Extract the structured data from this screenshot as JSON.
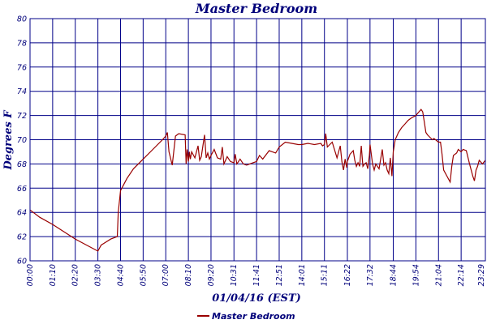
{
  "chart_data": {
    "type": "line",
    "title": "Master Bedroom",
    "xlabel": "01/04/16 (EST)",
    "ylabel": "Degrees F",
    "ylim": [
      60,
      80
    ],
    "yticks": [
      60,
      62,
      64,
      66,
      68,
      70,
      72,
      74,
      76,
      78,
      80
    ],
    "xlim": [
      "00:00",
      "23:29"
    ],
    "xticks": [
      "00:00",
      "01:10",
      "02:20",
      "03:30",
      "04:40",
      "05:50",
      "07:00",
      "08:10",
      "09:20",
      "10:31",
      "11:41",
      "12:51",
      "14:01",
      "15:11",
      "16:22",
      "17:32",
      "18:44",
      "19:54",
      "21:04",
      "22:14",
      "23:29"
    ],
    "grid": true,
    "legend": "bottom-center",
    "line_color": "#990000",
    "grid_color": "#000088",
    "series": [
      {
        "name": "Master Bedroom",
        "x": [
          "00:00",
          "00:30",
          "01:10",
          "01:45",
          "02:20",
          "02:55",
          "03:30",
          "03:40",
          "04:10",
          "04:30",
          "04:33",
          "04:40",
          "05:00",
          "05:20",
          "05:50",
          "06:20",
          "06:50",
          "07:00",
          "07:05",
          "07:10",
          "07:20",
          "07:30",
          "07:40",
          "08:00",
          "08:03",
          "08:06",
          "08:10",
          "08:13",
          "08:16",
          "08:20",
          "08:30",
          "08:40",
          "08:45",
          "08:50",
          "09:00",
          "09:05",
          "09:10",
          "09:15",
          "09:20",
          "09:30",
          "09:40",
          "09:50",
          "09:55",
          "10:00",
          "10:10",
          "10:20",
          "10:31",
          "10:35",
          "10:40",
          "10:50",
          "11:00",
          "11:10",
          "11:20",
          "11:30",
          "11:41",
          "11:50",
          "12:00",
          "12:20",
          "12:40",
          "12:51",
          "13:10",
          "13:30",
          "13:50",
          "14:01",
          "14:20",
          "14:40",
          "15:00",
          "15:05",
          "15:11",
          "15:15",
          "15:20",
          "15:35",
          "15:50",
          "16:00",
          "16:05",
          "16:10",
          "16:15",
          "16:20",
          "16:22",
          "16:30",
          "16:40",
          "16:45",
          "16:50",
          "16:55",
          "17:00",
          "17:05",
          "17:10",
          "17:15",
          "17:20",
          "17:25",
          "17:30",
          "17:32",
          "17:40",
          "17:45",
          "17:50",
          "18:00",
          "18:10",
          "18:15",
          "18:20",
          "18:25",
          "18:30",
          "18:35",
          "18:40",
          "18:44",
          "18:50",
          "19:00",
          "19:10",
          "19:20",
          "19:30",
          "19:40",
          "19:54",
          "20:00",
          "20:10",
          "20:15",
          "20:20",
          "20:25",
          "20:30",
          "20:45",
          "20:50",
          "21:04",
          "21:10",
          "21:15",
          "21:20",
          "21:30",
          "21:40",
          "21:45",
          "21:50",
          "22:00",
          "22:05",
          "22:14",
          "22:20",
          "22:30",
          "22:40",
          "22:50",
          "22:55",
          "23:00",
          "23:05",
          "23:10",
          "23:20",
          "23:29"
        ],
        "values": [
          64.2,
          63.6,
          63.0,
          62.4,
          61.8,
          61.3,
          60.8,
          61.3,
          61.8,
          62.0,
          64.0,
          65.8,
          66.8,
          67.6,
          68.4,
          69.2,
          70.0,
          70.3,
          70.6,
          69.0,
          67.9,
          70.3,
          70.5,
          70.4,
          68.0,
          69.2,
          68.2,
          69.0,
          68.4,
          69.0,
          68.5,
          69.5,
          68.3,
          68.6,
          70.4,
          68.5,
          68.9,
          68.4,
          68.7,
          69.2,
          68.5,
          68.4,
          69.4,
          68.0,
          68.6,
          68.2,
          68.1,
          68.8,
          68.0,
          68.4,
          68.0,
          67.9,
          68.0,
          68.1,
          68.2,
          68.7,
          68.4,
          69.1,
          68.9,
          69.4,
          69.8,
          69.7,
          69.6,
          69.6,
          69.7,
          69.6,
          69.7,
          69.5,
          69.6,
          70.5,
          69.4,
          69.8,
          68.5,
          69.5,
          68.2,
          67.5,
          68.4,
          67.7,
          68.2,
          68.8,
          69.1,
          68.3,
          67.8,
          68.1,
          67.8,
          69.5,
          67.8,
          68.0,
          68.1,
          67.6,
          68.7,
          69.6,
          68.0,
          67.5,
          68.0,
          67.6,
          69.2,
          67.9,
          68.1,
          67.5,
          67.2,
          68.5,
          67.0,
          69.0,
          70.0,
          70.6,
          71.0,
          71.3,
          71.6,
          71.8,
          72.0,
          72.2,
          72.5,
          72.3,
          71.5,
          70.6,
          70.4,
          70.0,
          70.1,
          69.8,
          69.8,
          68.8,
          67.5,
          67.0,
          66.5,
          67.8,
          68.7,
          68.9,
          69.2,
          69.0,
          69.2,
          69.1,
          68.0,
          67.0,
          66.6,
          67.5,
          67.8,
          68.3,
          68.0,
          68.3
        ]
      }
    ]
  }
}
